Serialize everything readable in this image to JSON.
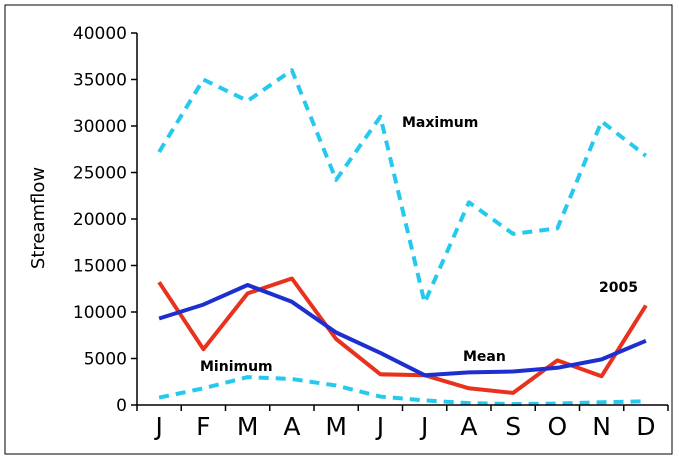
{
  "chart_data": {
    "type": "line",
    "title": "",
    "xlabel": "",
    "ylabel": "Streamflow",
    "categories": [
      "J",
      "F",
      "M",
      "A",
      "M",
      "J",
      "J",
      "A",
      "S",
      "O",
      "N",
      "D"
    ],
    "ylim": [
      0,
      40000
    ],
    "yticks": [
      0,
      5000,
      10000,
      15000,
      20000,
      25000,
      30000,
      35000,
      40000
    ],
    "grid": false,
    "series": [
      {
        "name": "Maximum",
        "color": "#26c9ee",
        "style": "dashed",
        "values": [
          27200,
          35000,
          32700,
          36000,
          24200,
          31000,
          11000,
          21800,
          18400,
          19000,
          30500,
          26800
        ]
      },
      {
        "name": "2005",
        "color": "#e8321e",
        "style": "solid",
        "values": [
          13200,
          6000,
          12000,
          13600,
          7100,
          3300,
          3200,
          1800,
          1300,
          4800,
          3100,
          10700
        ]
      },
      {
        "name": "Mean",
        "color": "#1e2fd0",
        "style": "solid",
        "values": [
          9300,
          10800,
          12900,
          11100,
          7800,
          5600,
          3200,
          3500,
          3600,
          4000,
          4900,
          6900
        ]
      },
      {
        "name": "Minimum",
        "color": "#26c9ee",
        "style": "dashed",
        "values": [
          800,
          1800,
          3000,
          2800,
          2100,
          900,
          500,
          200,
          100,
          150,
          300,
          400
        ]
      }
    ]
  }
}
